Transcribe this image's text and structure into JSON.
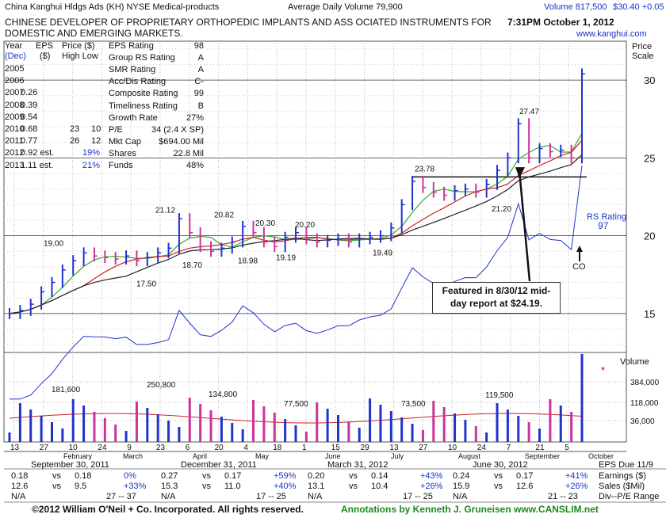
{
  "header": {
    "company": "China Kanghui Hldgs Ads",
    "ticker": "(KH)",
    "exchange": "NYSE",
    "industry": "Medical-products",
    "avg_volume_label": "Average Daily Volume 79,900",
    "volume_label": "Volume 817,500",
    "price_change": "$30.40  +0.05",
    "description_line1": "CHINESE DEVELOPER OF PROPRIETARY ORTHOPEDIC IMPLANTS AND ASS OCIATED INSTRUMENTS FOR",
    "description_line2": "DOMESTIC AND EMERGING MARKETS.",
    "timestamp": "7:31PM October 1, 2012",
    "website": "www.kanghui.com"
  },
  "earnings_table": {
    "headers": [
      "Year",
      "EPS",
      "Price ($)"
    ],
    "subheaders": [
      "(Dec)",
      "($)",
      "High Low"
    ],
    "rows": [
      {
        "year": "2005",
        "eps": "",
        "high": "",
        "low": ""
      },
      {
        "year": "2006",
        "eps": "",
        "high": "",
        "low": ""
      },
      {
        "year": "2007",
        "eps": "0.26",
        "high": "",
        "low": ""
      },
      {
        "year": "2008",
        "eps": "0.39",
        "high": "",
        "low": ""
      },
      {
        "year": "2009",
        "eps": "0.54",
        "high": "",
        "low": ""
      },
      {
        "year": "2010",
        "eps": "0.68",
        "high": "23",
        "low": "10"
      },
      {
        "year": "2011",
        "eps": "0.77",
        "high": "26",
        "low": "12"
      },
      {
        "year": "2012",
        "eps": "0.92 est.",
        "high": "19%",
        "low": ""
      },
      {
        "year": "2013",
        "eps": "1.11 est.",
        "high": "21%",
        "low": ""
      }
    ]
  },
  "ratings": [
    {
      "label": "EPS Rating",
      "value": "98"
    },
    {
      "label": "Group RS Rating",
      "value": "A"
    },
    {
      "label": "SMR Rating",
      "value": "A"
    },
    {
      "label": "Acc/Dis Rating",
      "value": "C-"
    },
    {
      "label": "Composite Rating",
      "value": "99"
    },
    {
      "label": "Timeliness Rating",
      "value": "B"
    },
    {
      "label": "Growth Rate",
      "value": "27%"
    },
    {
      "label": "P/E",
      "value": "34 (2.4 X SP)"
    },
    {
      "label": "Mkt Cap",
      "value": "$694.00 Mil"
    },
    {
      "label": "Shares",
      "value": "22.8 Mil"
    },
    {
      "label": "Funds",
      "value": "48%"
    }
  ],
  "price_scale_label": "Price\nScale",
  "volume_scale_label": "Volume",
  "rs_rating_label": "RS Rating",
  "rs_rating_value": "97",
  "co_label": "CO",
  "callout": {
    "line1": "Featured in 8/30/12 mid-",
    "line2": "day report at $24.19."
  },
  "bottom_quarters": [
    {
      "label": "September 30, 2011",
      "eps": [
        "0.18",
        "vs",
        "0.18",
        "0%"
      ],
      "sales": [
        "12.6",
        "vs",
        "9.5",
        "+33%"
      ],
      "pe": [
        "N/A",
        "27 -- 37"
      ]
    },
    {
      "label": "December 31, 2011",
      "eps": [
        "0.27",
        "vs",
        "0.17",
        "+59%"
      ],
      "sales": [
        "15.3",
        "vs",
        "11.0",
        "+40%"
      ],
      "pe": [
        "N/A",
        "17 -- 25"
      ]
    },
    {
      "label": "March 31, 2012",
      "eps": [
        "0.20",
        "vs",
        "0.14",
        "+43%"
      ],
      "sales": [
        "13.1",
        "vs",
        "10.4",
        "+26%"
      ],
      "pe": [
        "N/A",
        "17 -- 25"
      ]
    },
    {
      "label": "June 30, 2012",
      "eps": [
        "0.24",
        "vs",
        "0.17",
        "+41%"
      ],
      "sales": [
        "15.9",
        "vs",
        "12.6",
        "+26%"
      ],
      "pe": [
        "N/A",
        "21 -- 23"
      ]
    }
  ],
  "bottom_right": {
    "eps_due": "EPS Due 11/9",
    "earnings": "Earnings ($)",
    "sales": "Sales ($Mil)",
    "divpe": "Div--P/E Range"
  },
  "footer": {
    "copyright": "©2012 William O'Neil + Co. Incorporated. All rights reserved.",
    "annotations": "Annotations by Kenneth J. Gruneisen www.CANSLIM.net"
  },
  "chart_data": {
    "type": "bar",
    "price_axis": {
      "ticks": [
        15,
        20,
        25,
        30
      ],
      "range": [
        12.5,
        32.5
      ]
    },
    "volume_axis": {
      "ticks": [
        "384,000",
        "118,000",
        "36,000"
      ]
    },
    "x_labels": [
      "13",
      "27",
      "10",
      "24",
      "9",
      "23",
      "6",
      "20",
      "4",
      "18",
      "1",
      "15",
      "29",
      "13",
      "27",
      "10",
      "24",
      "7",
      "21",
      "5"
    ],
    "month_labels": [
      "February",
      "March",
      "April",
      "May",
      "June",
      "July",
      "August",
      "September",
      "October"
    ],
    "price_annotations": [
      {
        "label": "19.00",
        "value": 19.0
      },
      {
        "label": "17.50",
        "value": 17.5
      },
      {
        "label": "21.12",
        "value": 21.12
      },
      {
        "label": "18.70",
        "value": 18.7
      },
      {
        "label": "20.82",
        "value": 20.82
      },
      {
        "label": "18.98",
        "value": 18.98
      },
      {
        "label": "20.30",
        "value": 20.3
      },
      {
        "label": "19.19",
        "value": 19.19
      },
      {
        "label": "20.20",
        "value": 20.2
      },
      {
        "label": "19.49",
        "value": 19.49
      },
      {
        "label": "23.78",
        "value": 23.78
      },
      {
        "label": "21.20",
        "value": 21.2
      },
      {
        "label": "27.47",
        "value": 27.47
      }
    ],
    "volume_annotations": [
      "181,600",
      "250,800",
      "134,800",
      "77,500",
      "73,500",
      "119,500"
    ],
    "close_approx": [
      15,
      15.2,
      15.6,
      16.4,
      17,
      17.8,
      18.4,
      18.9,
      18.7,
      18.6,
      18.5,
      18.7,
      18.4,
      18.6,
      18.9,
      19.2,
      21.1,
      20.2,
      19.3,
      19,
      19.2,
      19.6,
      20.6,
      20.2,
      19.6,
      19.3,
      19.9,
      20.2,
      19.8,
      19.6,
      19.7,
      19.8,
      19.6,
      19.8,
      19.9,
      20.0,
      20.5,
      22,
      23.5,
      23.1,
      22.8,
      22.6,
      22.9,
      23.0,
      22.8,
      23.3,
      24.2,
      25.0,
      27.2,
      25.0,
      25.6,
      25.4,
      25.5,
      25.0,
      30.4
    ]
  }
}
